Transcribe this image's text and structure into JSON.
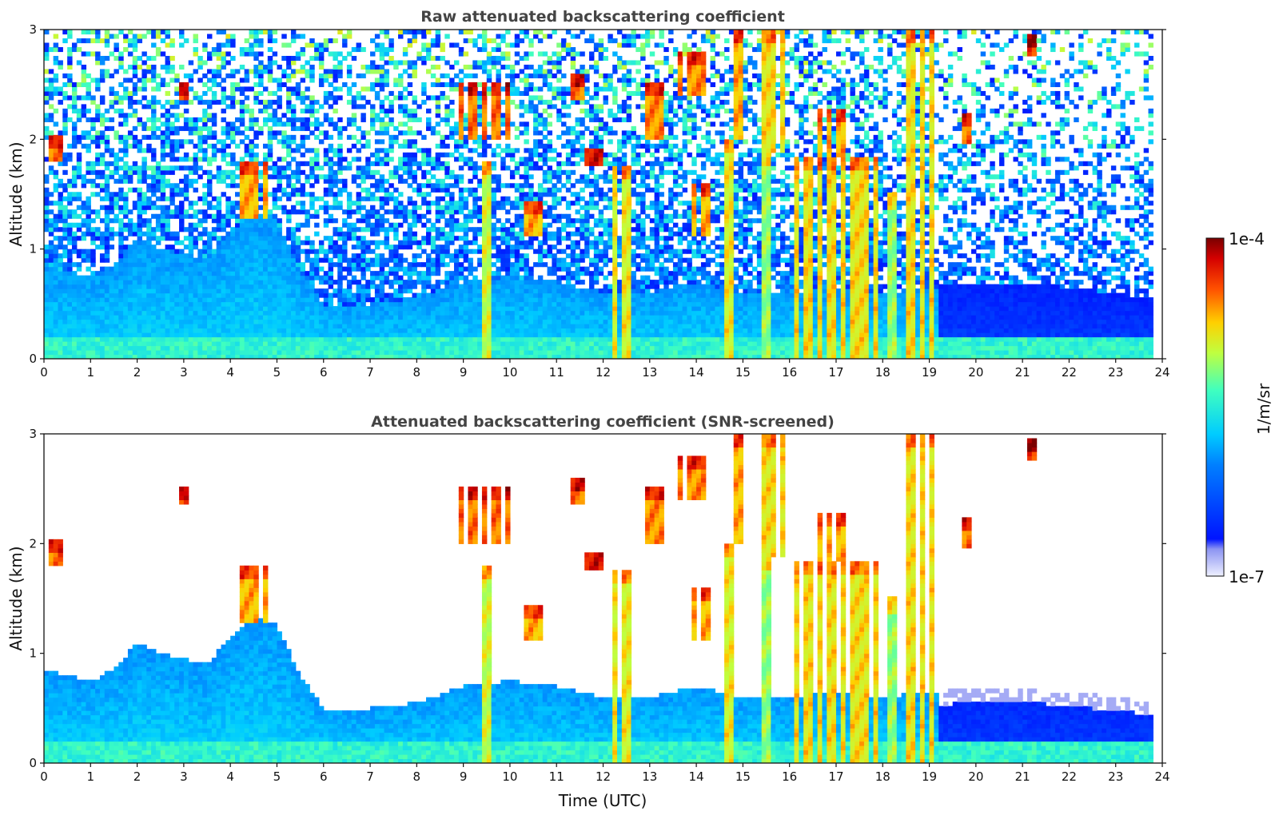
{
  "chart_data": [
    {
      "type": "heatmap",
      "title": "Raw attenuated backscattering coefficient",
      "xlabel": "",
      "ylabel": "Altitude (km)",
      "xlim": [
        0,
        24
      ],
      "ylim": [
        0,
        3
      ],
      "x_ticks": [
        "0",
        "1",
        "2",
        "3",
        "4",
        "5",
        "6",
        "7",
        "8",
        "9",
        "10",
        "11",
        "12",
        "13",
        "14",
        "15",
        "16",
        "17",
        "18",
        "19",
        "20",
        "21",
        "22",
        "23",
        "24"
      ],
      "y_ticks": [
        "0",
        "1",
        "2",
        "3"
      ],
      "screened": false,
      "aerosol_layer": [
        {
          "t": 0.0,
          "top": 0.85
        },
        {
          "t": 1.0,
          "top": 0.75
        },
        {
          "t": 1.5,
          "top": 0.85
        },
        {
          "t": 2.0,
          "top": 1.1
        },
        {
          "t": 2.5,
          "top": 1.0
        },
        {
          "t": 3.0,
          "top": 0.95
        },
        {
          "t": 3.5,
          "top": 0.9
        },
        {
          "t": 4.0,
          "top": 1.15
        },
        {
          "t": 4.5,
          "top": 1.35
        },
        {
          "t": 5.0,
          "top": 1.25
        },
        {
          "t": 5.5,
          "top": 0.8
        },
        {
          "t": 6.0,
          "top": 0.5
        },
        {
          "t": 7.0,
          "top": 0.5
        },
        {
          "t": 8.0,
          "top": 0.55
        },
        {
          "t": 9.0,
          "top": 0.7
        },
        {
          "t": 10.0,
          "top": 0.75
        },
        {
          "t": 11.0,
          "top": 0.7
        },
        {
          "t": 12.0,
          "top": 0.6
        },
        {
          "t": 13.0,
          "top": 0.6
        },
        {
          "t": 14.0,
          "top": 0.7
        },
        {
          "t": 15.0,
          "top": 0.6
        },
        {
          "t": 16.0,
          "top": 0.6
        },
        {
          "t": 17.0,
          "top": 0.65
        },
        {
          "t": 18.0,
          "top": 0.6
        },
        {
          "t": 19.0,
          "top": 0.65
        },
        {
          "t": 20.0,
          "top": 0.7
        },
        {
          "t": 21.0,
          "top": 0.7
        },
        {
          "t": 22.0,
          "top": 0.65
        },
        {
          "t": 23.0,
          "top": 0.6
        },
        {
          "t": 23.8,
          "top": 0.55
        }
      ],
      "clouds": [
        {
          "t0": 0.15,
          "t1": 0.35,
          "base": 1.8,
          "top": 2.05,
          "value": 0.9
        },
        {
          "t0": 2.85,
          "t1": 3.05,
          "base": 2.35,
          "top": 2.5,
          "value": 0.95
        },
        {
          "t0": 4.2,
          "t1": 4.9,
          "base": 1.3,
          "top": 1.8,
          "value": 0.85
        },
        {
          "t0": 8.9,
          "t1": 10.1,
          "base": 2.0,
          "top": 2.5,
          "value": 0.9
        },
        {
          "t0": 9.4,
          "t1": 9.55,
          "base": 0.0,
          "top": 1.8,
          "value": 0.75
        },
        {
          "t0": 10.3,
          "t1": 10.7,
          "base": 1.1,
          "top": 1.45,
          "value": 0.85
        },
        {
          "t0": 11.3,
          "t1": 11.6,
          "base": 2.35,
          "top": 2.6,
          "value": 0.9
        },
        {
          "t0": 11.6,
          "t1": 12.0,
          "base": 1.75,
          "top": 1.9,
          "value": 0.9
        },
        {
          "t0": 12.1,
          "t1": 12.7,
          "base": 0.0,
          "top": 1.75,
          "value": 0.78
        },
        {
          "t0": 12.9,
          "t1": 13.3,
          "base": 2.0,
          "top": 2.5,
          "value": 0.88
        },
        {
          "t0": 13.6,
          "t1": 14.2,
          "base": 2.4,
          "top": 2.8,
          "value": 0.88
        },
        {
          "t0": 13.8,
          "t1": 14.4,
          "base": 1.1,
          "top": 1.6,
          "value": 0.85
        },
        {
          "t0": 14.6,
          "t1": 14.85,
          "base": 0.0,
          "top": 2.0,
          "value": 0.78
        },
        {
          "t0": 14.8,
          "t1": 15.0,
          "base": 2.0,
          "top": 3.0,
          "value": 0.85
        },
        {
          "t0": 15.4,
          "t1": 16.0,
          "base": 1.9,
          "top": 3.0,
          "value": 0.8
        },
        {
          "t0": 15.45,
          "t1": 15.6,
          "base": 0.0,
          "top": 1.9,
          "value": 0.7
        },
        {
          "t0": 16.1,
          "t1": 18.0,
          "base": 0.0,
          "top": 1.85,
          "value": 0.8
        },
        {
          "t0": 16.6,
          "t1": 17.2,
          "base": 1.85,
          "top": 2.3,
          "value": 0.85
        },
        {
          "t0": 18.15,
          "t1": 18.3,
          "base": 0.0,
          "top": 1.5,
          "value": 0.7
        },
        {
          "t0": 18.4,
          "t1": 19.05,
          "base": 0.0,
          "top": 3.0,
          "value": 0.8
        },
        {
          "t0": 19.7,
          "t1": 19.95,
          "base": 1.95,
          "top": 2.25,
          "value": 0.9
        },
        {
          "t0": 21.1,
          "t1": 21.3,
          "base": 2.75,
          "top": 2.95,
          "value": 0.95
        }
      ]
    },
    {
      "type": "heatmap",
      "title": "Attenuated backscattering coefficient (SNR-screened)",
      "xlabel": "Time (UTC)",
      "ylabel": "Altitude (km)",
      "xlim": [
        0,
        24
      ],
      "ylim": [
        0,
        3
      ],
      "x_ticks": [
        "0",
        "1",
        "2",
        "3",
        "4",
        "5",
        "6",
        "7",
        "8",
        "9",
        "10",
        "11",
        "12",
        "13",
        "14",
        "15",
        "16",
        "17",
        "18",
        "19",
        "20",
        "21",
        "22",
        "23",
        "24"
      ],
      "y_ticks": [
        "0",
        "1",
        "2",
        "3"
      ],
      "screened": true
    }
  ],
  "colorbar": {
    "label": "1/m/sr",
    "min_label": "1e-7",
    "max_label": "1e-4",
    "colormap": "jet",
    "scale": "log"
  },
  "colors": {
    "noise_blue": "#1530ff",
    "aerosol_cyan": "#3fb5f0",
    "cloud_red": "#cc1a00",
    "cloud_dark": "#6e0000"
  }
}
